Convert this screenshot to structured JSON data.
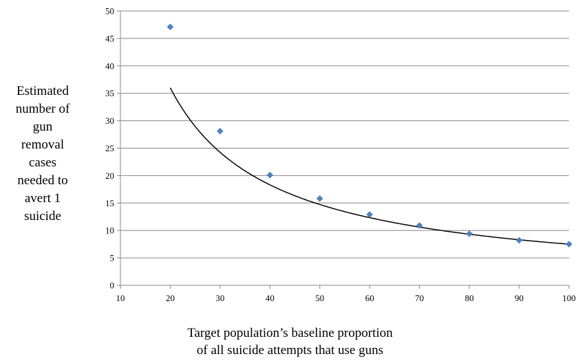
{
  "chart_data": {
    "type": "scatter",
    "xlabel_lines": [
      "Target population’s baseline proportion",
      "of all suicide attempts that use guns"
    ],
    "ylabel_lines": [
      "Estimated",
      "number of",
      "gun",
      "removal",
      "cases",
      "needed to",
      "avert 1",
      "suicide"
    ],
    "xlim": [
      10,
      100
    ],
    "ylim": [
      0,
      50
    ],
    "xticks": [
      10,
      20,
      30,
      40,
      50,
      60,
      70,
      80,
      90,
      100
    ],
    "yticks": [
      0,
      5,
      10,
      15,
      20,
      25,
      30,
      35,
      40,
      45,
      50
    ],
    "grid": "horizontal",
    "legend": "none",
    "series": [
      {
        "x": [
          20,
          30,
          40,
          50,
          60,
          70,
          80,
          90,
          100
        ],
        "y": [
          47.1,
          28.1,
          20.1,
          15.8,
          12.9,
          10.9,
          9.4,
          8.2,
          7.5
        ],
        "marker": "diamond",
        "color": "#4f81bd"
      }
    ],
    "trendline": {
      "type": "power",
      "x_range": [
        20,
        100
      ],
      "coefficient": 668,
      "exponent": -0.975,
      "color": "#000000"
    }
  }
}
